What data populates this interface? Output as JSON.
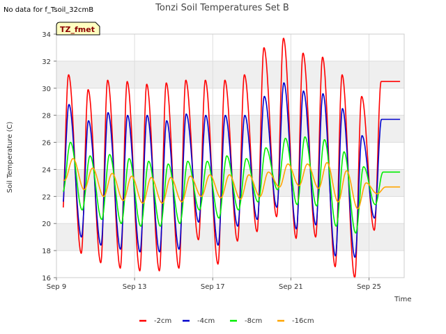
{
  "note": "No data for f_Tsoil_32cmB",
  "chart_data": {
    "type": "line",
    "title": "Tonzi Soil Temperatures Set B",
    "xlabel": "Time",
    "ylabel": "Soil Temperature (C)",
    "badge": "TZ_fmet",
    "ylim": [
      16,
      34
    ],
    "yticks": [
      16,
      18,
      20,
      22,
      24,
      26,
      28,
      30,
      32,
      34
    ],
    "xlim": [
      9,
      26.8
    ],
    "xticks": [
      {
        "day": 9,
        "label": "Sep 9"
      },
      {
        "day": 13,
        "label": "Sep 13"
      },
      {
        "day": 17,
        "label": "Sep 17"
      },
      {
        "day": 21,
        "label": "Sep 21"
      },
      {
        "day": 25,
        "label": "Sep 25"
      }
    ],
    "grid": true,
    "legend_position": "bottom",
    "series": [
      {
        "name": "-2cm",
        "color": "#ff0000",
        "max": [
          31.0,
          29.9,
          30.6,
          30.5,
          30.3,
          30.4,
          30.6,
          30.6,
          30.6,
          31.0,
          33.0,
          33.7,
          32.6,
          32.3,
          31.0,
          29.4,
          30.5
        ],
        "min": [
          19.8,
          17.8,
          17.1,
          16.7,
          16.5,
          16.5,
          16.7,
          18.8,
          17.0,
          18.7,
          19.4,
          20.5,
          18.9,
          19.0,
          16.8,
          16.0,
          19.5
        ]
      },
      {
        "name": "-4cm",
        "color": "#0000cc",
        "max": [
          28.8,
          27.6,
          28.2,
          28.0,
          28.0,
          27.6,
          28.1,
          28.0,
          28.0,
          28.0,
          29.4,
          30.4,
          29.8,
          29.6,
          28.5,
          26.5,
          27.7
        ],
        "min": [
          20.9,
          19.0,
          18.4,
          18.1,
          17.9,
          17.9,
          18.1,
          20.1,
          18.4,
          19.8,
          20.3,
          21.2,
          19.6,
          19.9,
          17.6,
          17.5,
          20.4
        ]
      },
      {
        "name": "-8cm",
        "color": "#00ee00",
        "max": [
          26.0,
          25.0,
          25.1,
          24.8,
          24.6,
          24.4,
          24.6,
          24.6,
          25.0,
          24.8,
          25.6,
          26.3,
          26.4,
          26.2,
          25.3,
          24.2,
          23.8
        ],
        "min": [
          22.3,
          21.0,
          20.3,
          20.0,
          19.8,
          19.8,
          20.0,
          21.0,
          20.4,
          21.0,
          21.6,
          22.5,
          21.4,
          21.3,
          19.8,
          19.3,
          21.4
        ]
      },
      {
        "name": "-16cm",
        "color": "#ffa500",
        "max": [
          24.8,
          24.1,
          23.7,
          23.5,
          23.4,
          23.4,
          23.5,
          23.6,
          23.6,
          23.6,
          23.8,
          24.4,
          24.4,
          24.5,
          23.9,
          23.0,
          22.7
        ],
        "min": [
          23.2,
          22.5,
          22.0,
          21.7,
          21.5,
          21.5,
          21.6,
          22.0,
          21.9,
          21.8,
          22.0,
          22.7,
          22.8,
          22.6,
          21.6,
          21.1,
          22.2
        ]
      }
    ]
  }
}
